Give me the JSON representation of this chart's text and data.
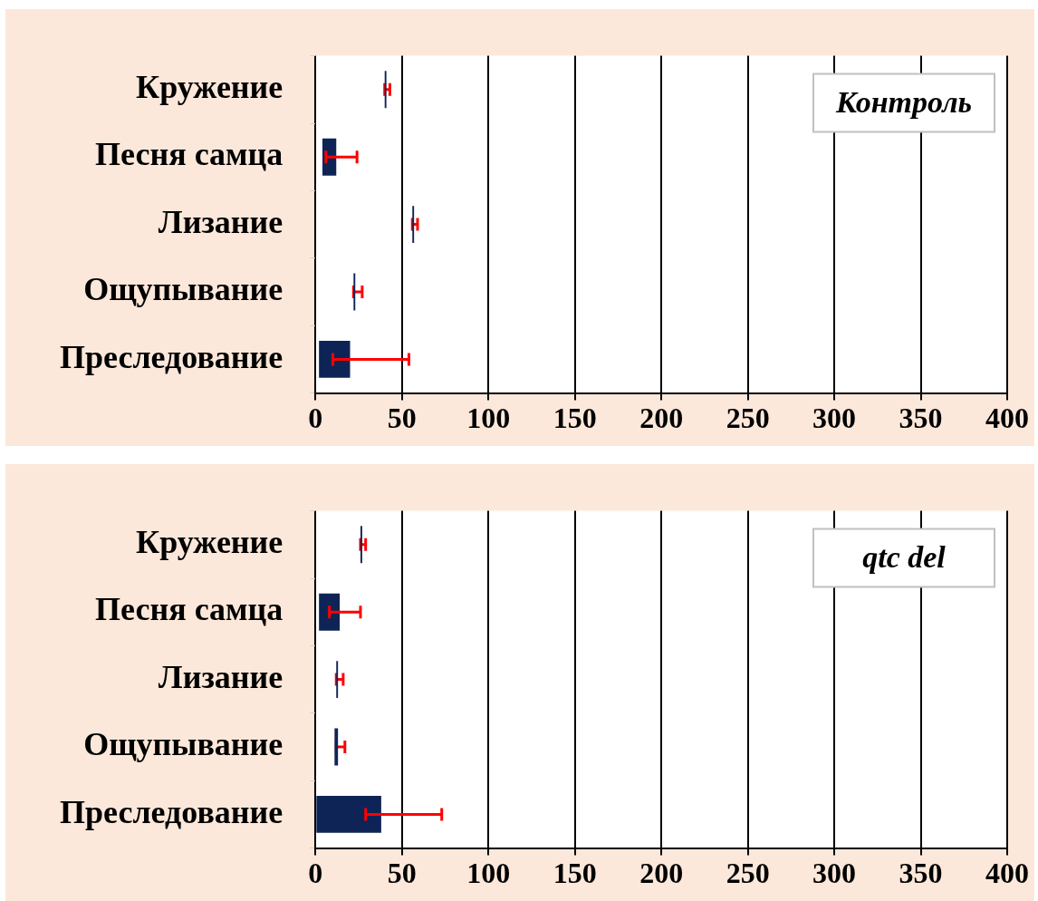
{
  "chart_data": [
    {
      "type": "bar",
      "title": "Контроль",
      "orientation": "horizontal",
      "categories": [
        "Кружение",
        "Песня самца",
        "Лизание",
        "Ощупывание",
        "Преследование"
      ],
      "base": [
        40,
        4,
        56,
        22,
        2
      ],
      "values": [
        1,
        8,
        1,
        1,
        18
      ],
      "errors": [
        [
          40,
          43
        ],
        [
          6,
          24
        ],
        [
          56,
          59
        ],
        [
          22,
          27
        ],
        [
          10,
          54
        ]
      ],
      "color": "#0f2456",
      "xlim": [
        0,
        400
      ],
      "xticks": [
        0,
        50,
        100,
        150,
        200,
        250,
        300,
        350,
        400
      ],
      "grid": "x",
      "legend": false
    },
    {
      "type": "bar",
      "title": "qtc del",
      "orientation": "horizontal",
      "categories": [
        "Кружение",
        "Песня самца",
        "Лизание",
        "Ощупывание",
        "Преследование"
      ],
      "base": [
        26,
        2,
        12,
        11,
        0
      ],
      "values": [
        1,
        12,
        1,
        2,
        38
      ],
      "errors": [
        [
          26,
          29
        ],
        [
          8,
          26
        ],
        [
          12,
          16
        ],
        [
          12,
          17
        ],
        [
          29,
          73
        ]
      ],
      "color": "#0f2456",
      "xlim": [
        0,
        400
      ],
      "xticks": [
        0,
        50,
        100,
        150,
        200,
        250,
        300,
        350,
        400
      ],
      "grid": "x",
      "legend": false
    }
  ]
}
